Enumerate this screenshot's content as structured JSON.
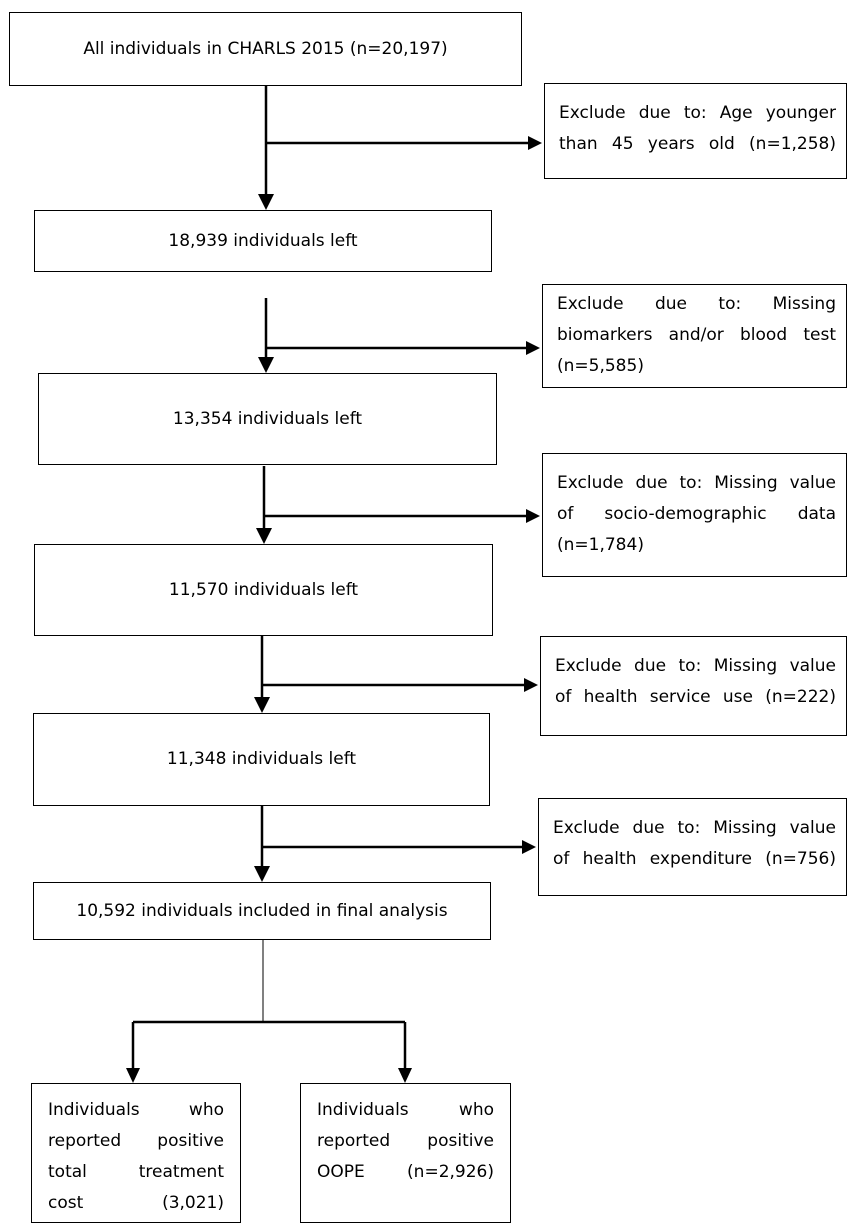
{
  "main_steps": [
    "All individuals in CHARLS 2015 (n=20,197)",
    "18,939 individuals left",
    "13,354 individuals left",
    "11,570 individuals left",
    "11,348 individuals left",
    "10,592 individuals included in final analysis"
  ],
  "exclusions": [
    {
      "lines": [
        "Exclude due to: Age younger",
        "than 45 years old (n=1,258)"
      ]
    },
    {
      "lines": [
        "Exclude due to: Missing",
        "biomarkers and/or blood test",
        "(n=5,585)"
      ]
    },
    {
      "lines": [
        "Exclude due to: Missing value",
        "of socio-demographic data",
        "(n=1,784)"
      ]
    },
    {
      "lines": [
        "Exclude due to: Missing value",
        "of health service use (n=222)"
      ]
    },
    {
      "lines": [
        "Exclude due to: Missing value",
        "of health expenditure (n=756)"
      ]
    }
  ],
  "outcomes": [
    {
      "lines": [
        "Individuals who",
        "reported positive",
        "total treatment",
        "cost (3,021)"
      ]
    },
    {
      "lines": [
        "Individuals who",
        "reported positive",
        "OOPE (n=2,926)"
      ]
    }
  ]
}
